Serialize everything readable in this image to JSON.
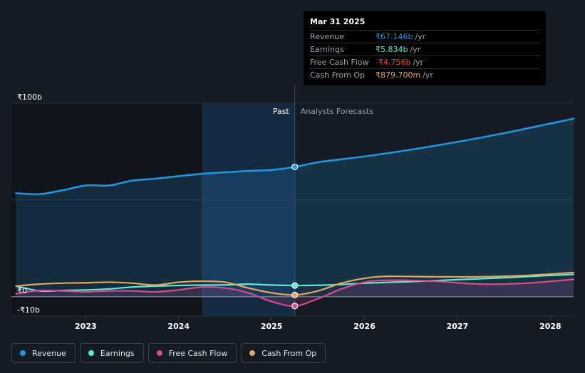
{
  "colors": {
    "background": "#151b24",
    "past_shade": "#10151c",
    "highlight_band": "#16314d",
    "revenue": "#2394df",
    "earnings": "#5eead4",
    "free_cash_flow": "#d84b8a",
    "cash_from_op": "#e9a55c",
    "negative": "#f04438"
  },
  "tooltip": {
    "date": "Mar 31 2025",
    "rows": [
      {
        "label": "Revenue",
        "value": "₹67.146b",
        "unit": "/yr",
        "color": "#2394df"
      },
      {
        "label": "Earnings",
        "value": "₹5.834b",
        "unit": "/yr",
        "color": "#5eead4"
      },
      {
        "label": "Free Cash Flow",
        "value": "-₹4.756b",
        "unit": "/yr",
        "color": "#f04438"
      },
      {
        "label": "Cash From Op",
        "value": "₹879.700m",
        "unit": "/yr",
        "color": "#e9a55c"
      }
    ]
  },
  "legend": [
    {
      "label": "Revenue",
      "color": "#2394df"
    },
    {
      "label": "Earnings",
      "color": "#5eead4"
    },
    {
      "label": "Free Cash Flow",
      "color": "#d84b8a"
    },
    {
      "label": "Cash From Op",
      "color": "#e9a55c"
    }
  ],
  "chart_data": {
    "type": "line",
    "title": "",
    "y_unit": "₹ billions",
    "ylim": [
      -10,
      100
    ],
    "y_tick_labels": [
      {
        "value": 100,
        "label": "₹100b"
      },
      {
        "value": 0,
        "label": "₹0"
      },
      {
        "value": -10,
        "label": "-₹10b"
      }
    ],
    "x_range": [
      2022.2,
      2028.25
    ],
    "x_ticks": [
      {
        "value": 2023,
        "label": "2023"
      },
      {
        "value": 2024,
        "label": "2024"
      },
      {
        "value": 2025,
        "label": "2025"
      },
      {
        "value": 2026,
        "label": "2026"
      },
      {
        "value": 2027,
        "label": "2027"
      },
      {
        "value": 2028,
        "label": "2028"
      }
    ],
    "regions": {
      "past_label": "Past",
      "forecast_label": "Analysts Forecasts",
      "divider_x": 2025.25,
      "highlight_start": 2024.25
    },
    "series": [
      {
        "name": "Revenue",
        "color": "#2394df",
        "fill": true,
        "points": [
          [
            2022.25,
            53.5
          ],
          [
            2022.5,
            53.0
          ],
          [
            2022.75,
            55.0
          ],
          [
            2023.0,
            57.5
          ],
          [
            2023.25,
            57.5
          ],
          [
            2023.5,
            60.0
          ],
          [
            2023.75,
            61.0
          ],
          [
            2024.0,
            62.3
          ],
          [
            2024.25,
            63.5
          ],
          [
            2024.5,
            64.3
          ],
          [
            2024.75,
            65.0
          ],
          [
            2025.0,
            65.5
          ],
          [
            2025.25,
            67.1
          ],
          [
            2025.5,
            69.5
          ],
          [
            2025.75,
            71.0
          ],
          [
            2026.0,
            72.5
          ],
          [
            2026.5,
            76.0
          ],
          [
            2027.0,
            80.0
          ],
          [
            2027.5,
            84.5
          ],
          [
            2028.0,
            89.5
          ],
          [
            2028.25,
            92.0
          ]
        ]
      },
      {
        "name": "Earnings",
        "color": "#5eead4",
        "fill": false,
        "points": [
          [
            2022.25,
            5.5
          ],
          [
            2022.5,
            3.0
          ],
          [
            2022.75,
            3.2
          ],
          [
            2023.0,
            3.5
          ],
          [
            2023.25,
            4.0
          ],
          [
            2023.5,
            5.0
          ],
          [
            2023.75,
            5.5
          ],
          [
            2024.0,
            5.8
          ],
          [
            2024.25,
            6.0
          ],
          [
            2024.5,
            6.1
          ],
          [
            2024.75,
            6.5
          ],
          [
            2025.0,
            6.0
          ],
          [
            2025.25,
            5.8
          ],
          [
            2025.5,
            5.9
          ],
          [
            2025.75,
            6.3
          ],
          [
            2026.0,
            7.0
          ],
          [
            2026.5,
            7.8
          ],
          [
            2027.0,
            8.8
          ],
          [
            2027.5,
            9.8
          ],
          [
            2028.0,
            11.0
          ],
          [
            2028.25,
            11.5
          ]
        ]
      },
      {
        "name": "Free Cash Flow",
        "color": "#d84b8a",
        "fill": true,
        "points": [
          [
            2022.25,
            1.5
          ],
          [
            2022.5,
            3.2
          ],
          [
            2022.75,
            3.0
          ],
          [
            2023.0,
            2.5
          ],
          [
            2023.25,
            3.0
          ],
          [
            2023.5,
            3.0
          ],
          [
            2023.75,
            2.5
          ],
          [
            2024.0,
            3.5
          ],
          [
            2024.25,
            5.0
          ],
          [
            2024.5,
            4.5
          ],
          [
            2024.75,
            2.0
          ],
          [
            2025.0,
            -2.5
          ],
          [
            2025.25,
            -4.8
          ],
          [
            2025.5,
            -1.0
          ],
          [
            2025.75,
            4.0
          ],
          [
            2026.0,
            7.5
          ],
          [
            2026.25,
            8.5
          ],
          [
            2026.75,
            8.0
          ],
          [
            2027.25,
            6.5
          ],
          [
            2027.75,
            7.0
          ],
          [
            2028.25,
            9.0
          ]
        ]
      },
      {
        "name": "Cash From Op",
        "color": "#e9a55c",
        "fill": false,
        "points": [
          [
            2022.25,
            5.5
          ],
          [
            2022.5,
            6.5
          ],
          [
            2022.75,
            7.0
          ],
          [
            2023.0,
            7.2
          ],
          [
            2023.25,
            7.5
          ],
          [
            2023.5,
            7.0
          ],
          [
            2023.75,
            6.0
          ],
          [
            2024.0,
            7.5
          ],
          [
            2024.25,
            8.0
          ],
          [
            2024.5,
            7.5
          ],
          [
            2024.75,
            4.5
          ],
          [
            2025.0,
            2.0
          ],
          [
            2025.25,
            0.9
          ],
          [
            2025.5,
            3.0
          ],
          [
            2025.75,
            7.0
          ],
          [
            2026.0,
            9.5
          ],
          [
            2026.25,
            10.5
          ],
          [
            2026.75,
            10.3
          ],
          [
            2027.25,
            10.3
          ],
          [
            2027.75,
            11.0
          ],
          [
            2028.25,
            12.5
          ]
        ]
      }
    ],
    "highlight_x": 2025.25
  }
}
